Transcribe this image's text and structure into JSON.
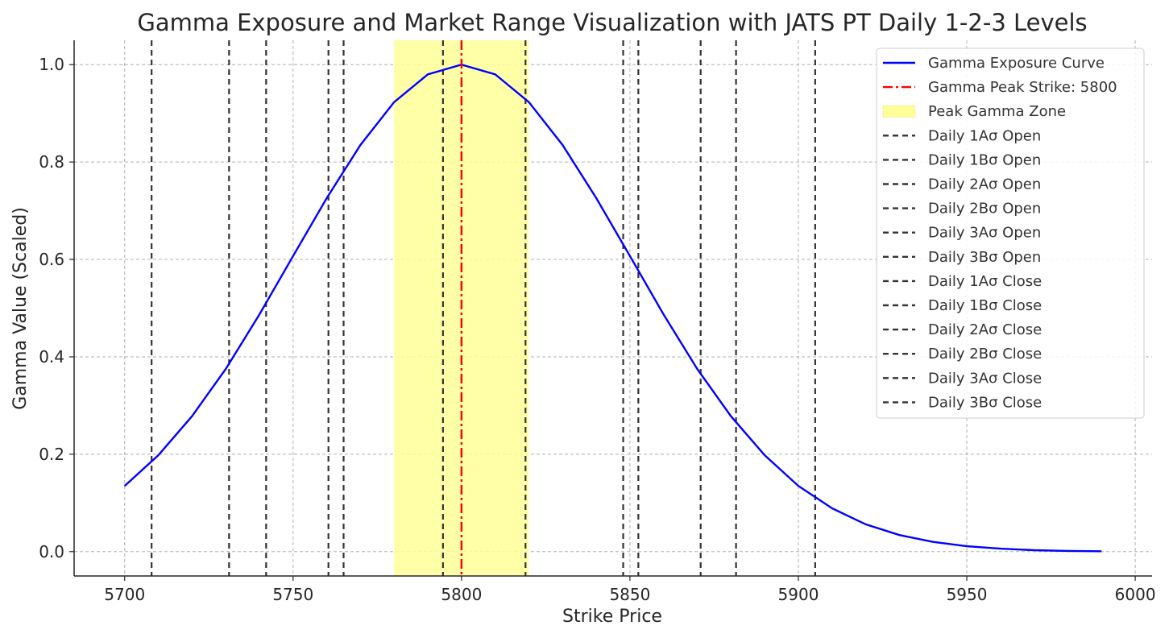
{
  "chart_data": {
    "type": "line",
    "title": "Gamma Exposure and Market Range Visualization with JATS PT Daily 1-2-3 Levels",
    "xlabel": "Strike Price",
    "ylabel": "Gamma Value (Scaled)",
    "xlim": [
      5685,
      6005
    ],
    "ylim": [
      -0.05,
      1.05
    ],
    "xticks": [
      "5700",
      "5750",
      "5800",
      "5850",
      "5900",
      "5950",
      "6000"
    ],
    "yticks": [
      "0.0",
      "0.2",
      "0.4",
      "0.6",
      "0.8",
      "1.0"
    ],
    "grid": true,
    "legend_position": "top-right",
    "series": [
      {
        "name": "Gamma Exposure Curve",
        "color": "#0000ff",
        "x": [
          5700,
          5710,
          5720,
          5730,
          5740,
          5750,
          5760,
          5770,
          5780,
          5790,
          5800,
          5810,
          5820,
          5830,
          5840,
          5850,
          5860,
          5870,
          5880,
          5890,
          5900,
          5910,
          5920,
          5930,
          5940,
          5950,
          5960,
          5970,
          5980,
          5990
        ],
        "y": [
          0.135,
          0.198,
          0.278,
          0.375,
          0.487,
          0.607,
          0.726,
          0.835,
          0.923,
          0.98,
          1.0,
          0.98,
          0.923,
          0.835,
          0.726,
          0.607,
          0.487,
          0.375,
          0.278,
          0.198,
          0.135,
          0.089,
          0.056,
          0.034,
          0.02,
          0.011,
          0.006,
          0.003,
          0.0015,
          0.0007
        ]
      }
    ],
    "peak_strike": {
      "name": "Gamma Peak Strike: 5800",
      "x": 5800,
      "color": "#ff0000"
    },
    "peak_zone": {
      "name": "Peak Gamma Zone",
      "x_start": 5780,
      "x_end": 5820,
      "color": "#ffff99"
    },
    "levels": [
      {
        "name": "Daily 1Aσ Open",
        "x": 5708
      },
      {
        "name": "Daily 1Bσ Open",
        "x": 5731
      },
      {
        "name": "Daily 2Aσ Open",
        "x": 5742
      },
      {
        "name": "Daily 2Bσ Open",
        "x": 5760.5
      },
      {
        "name": "Daily 3Aσ Open",
        "x": 5765
      },
      {
        "name": "Daily 3Bσ Open",
        "x": 5794.5
      },
      {
        "name": "Daily 1Aσ Close",
        "x": 5819
      },
      {
        "name": "Daily 1Bσ Close",
        "x": 5848
      },
      {
        "name": "Daily 2Aσ Close",
        "x": 5852.5
      },
      {
        "name": "Daily 2Bσ Close",
        "x": 5871
      },
      {
        "name": "Daily 3Aσ Close",
        "x": 5881.5
      },
      {
        "name": "Daily 3Bσ Close",
        "x": 5905
      }
    ],
    "level_color": "#333333"
  }
}
